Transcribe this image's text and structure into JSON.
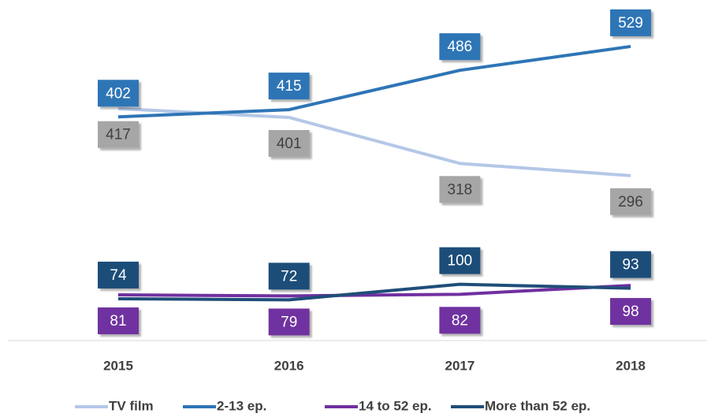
{
  "chart_data": {
    "type": "line",
    "categories": [
      "2015",
      "2016",
      "2017",
      "2018"
    ],
    "series": [
      {
        "name": "TV film",
        "color": "#b4c7e7",
        "label_color": "#a6a6a6",
        "values": [
          417,
          401,
          318,
          296
        ]
      },
      {
        "name": "2-13 ep.",
        "color": "#2e75b6",
        "label_color": "#2e75b6",
        "values": [
          402,
          415,
          486,
          529
        ]
      },
      {
        "name": "14 to 52 ep.",
        "color": "#7030a0",
        "label_color": "#7030a0",
        "values": [
          81,
          79,
          82,
          98
        ]
      },
      {
        "name": "More than 52 ep.",
        "color": "#1f4e79",
        "label_color": "#1f4e79",
        "values": [
          74,
          72,
          100,
          93
        ]
      }
    ],
    "ylim": [
      0,
      600
    ],
    "legend": "bottom"
  }
}
